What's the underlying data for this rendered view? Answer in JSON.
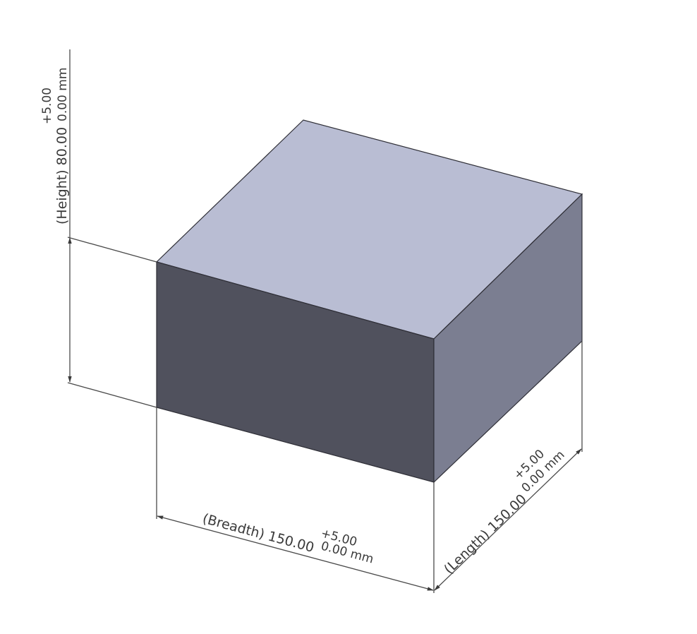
{
  "colors": {
    "top_face": "#b9bdd3",
    "front_face": "#50515d",
    "side_face": "#7b7e91",
    "dimension_line": "#4a4a4a",
    "text": "#3a3a3a",
    "background": "#ffffff"
  },
  "dimensions": {
    "height": {
      "label": "(Height) 80.00",
      "tol_upper": "+5.00",
      "tol_lower": "0.00 mm"
    },
    "breadth": {
      "label": "(Breadth) 150.00",
      "tol_upper": "+5.00",
      "tol_lower": "0.00 mm"
    },
    "length": {
      "label": "(Length) 150.00",
      "tol_upper": "+5.00",
      "tol_lower": "0.00 mm"
    }
  }
}
